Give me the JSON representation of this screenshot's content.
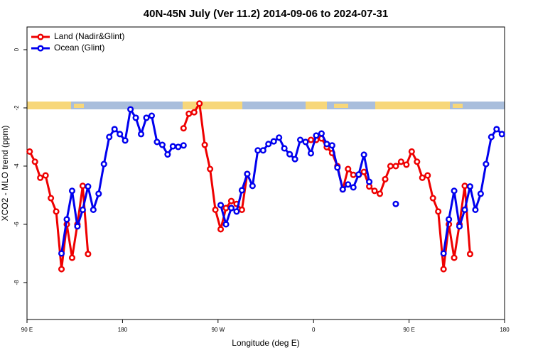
{
  "chart_data": {
    "type": "line",
    "title": "40N-45N July (Ver 11.2)   2014-09-06 to 2024-07-31",
    "x_label": "Longitude (deg E)",
    "y_label": "XCO2 - MLO trend (ppm)",
    "xlim": [
      90,
      540
    ],
    "ylim": [
      -9.27,
      0.78
    ],
    "xticks": [
      {
        "value": 90,
        "label": "90 E"
      },
      180,
      {
        "value": 270,
        "label": "90 W"
      },
      {
        "value": 360,
        "label": "0"
      },
      {
        "value": 450,
        "label": "90 E"
      },
      {
        "value": 540,
        "label": "180"
      }
    ],
    "yticks": [
      0,
      -2,
      -4,
      -6,
      -8
    ],
    "legend": "top-left",
    "x": [
      92.5,
      97.5,
      102.5,
      107.5,
      112.5,
      117.5,
      122.5,
      127.5,
      132.5,
      137.5,
      142.5,
      147.5,
      152.5,
      157.5,
      162.5,
      167.5,
      172.5,
      177.5,
      182.5,
      187.5,
      192.5,
      197.5,
      202.5,
      207.5,
      212.5,
      217.5,
      222.5,
      227.5,
      232.5,
      237.5,
      242.5,
      247.5,
      252.5,
      257.5,
      262.5,
      267.5,
      272.5,
      277.5,
      282.5,
      287.5,
      292.5,
      297.5,
      302.5,
      307.5,
      312.5,
      317.5,
      322.5,
      327.5,
      332.5,
      337.5,
      342.5,
      347.5,
      352.5,
      357.5,
      362.5,
      367.5,
      372.5,
      377.5,
      382.5,
      387.5,
      392.5,
      397.5,
      402.5,
      407.5,
      412.5,
      417.5,
      422.5,
      427.5,
      432.5,
      437.5,
      442.5,
      447.5,
      452.5,
      457.5,
      462.5,
      467.5,
      472.5,
      477.5,
      482.5,
      487.5,
      492.5,
      497.5,
      502.5,
      507.5,
      512.5,
      517.5,
      522.5,
      527.5,
      532.5,
      537.5
    ],
    "series": [
      {
        "name": "Land (Nadir&Glint)",
        "color": "#ee0000",
        "values": [
          -3.5,
          -3.85,
          -4.4,
          -4.32,
          -5.1,
          -5.56,
          -7.54,
          -6.0,
          -7.15,
          -6.0,
          -4.68,
          -7.02,
          null,
          null,
          null,
          null,
          null,
          null,
          null,
          null,
          null,
          null,
          null,
          null,
          null,
          null,
          null,
          null,
          null,
          -2.7,
          -2.2,
          -2.15,
          -1.85,
          -3.27,
          -4.1,
          -5.5,
          -6.17,
          -5.44,
          -5.2,
          -5.3,
          -5.5,
          -4.27,
          null,
          null,
          null,
          null,
          null,
          null,
          null,
          null,
          null,
          null,
          null,
          -3.1,
          -3.1,
          -3.05,
          -3.35,
          -3.55,
          -4.0,
          -4.8,
          -4.1,
          -4.3,
          -4.3,
          -4.2,
          -4.7,
          -4.85,
          -4.95,
          -4.45,
          -4.0,
          -4.0,
          -3.85,
          -3.95,
          -3.5,
          -3.85,
          -4.4,
          -4.32,
          -5.1,
          -5.56,
          -7.54,
          -6.0,
          -7.15,
          -6.0,
          -4.68,
          -7.02,
          null,
          null,
          null,
          null,
          null,
          null
        ]
      },
      {
        "name": "Ocean (Glint)",
        "color": "#0000ee",
        "values": [
          null,
          null,
          null,
          null,
          null,
          null,
          -7.0,
          -5.83,
          -4.85,
          -6.07,
          -5.5,
          -4.7,
          -5.5,
          -4.95,
          -3.93,
          -3.0,
          -2.73,
          -2.9,
          -3.12,
          -2.05,
          -2.34,
          -2.9,
          -2.34,
          -2.27,
          -3.17,
          -3.27,
          -3.6,
          -3.32,
          -3.34,
          -3.29,
          null,
          null,
          null,
          null,
          null,
          null,
          -5.34,
          -6.0,
          -5.44,
          -5.56,
          -4.83,
          -4.27,
          -4.68,
          -3.46,
          -3.46,
          -3.24,
          -3.15,
          -3.02,
          -3.39,
          -3.59,
          -3.76,
          -3.1,
          -3.17,
          -3.56,
          -2.95,
          -2.88,
          -3.24,
          -3.29,
          -4.05,
          -4.8,
          -4.63,
          -4.73,
          -4.29,
          -3.61,
          -4.54,
          null,
          null,
          null,
          null,
          -5.3,
          null,
          null,
          null,
          null,
          null,
          null,
          null,
          null,
          -7.0,
          -5.83,
          -4.85,
          -6.07,
          -5.5,
          -4.7,
          -5.5,
          -4.95,
          -3.93,
          -3.0,
          -2.73,
          -2.9
        ]
      }
    ]
  }
}
